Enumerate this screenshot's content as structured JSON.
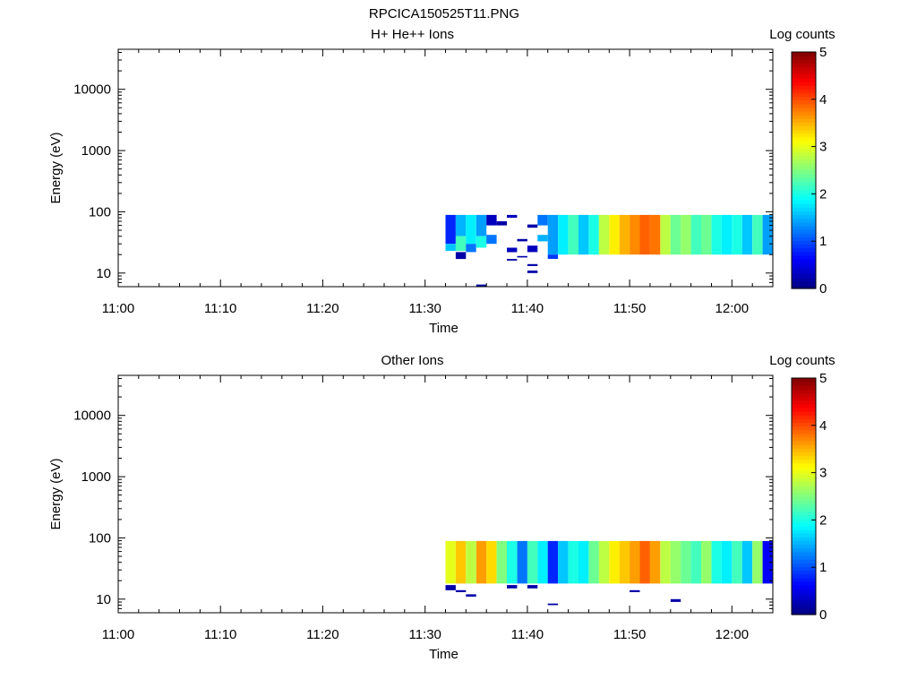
{
  "figure": {
    "title": "RPCICA150525T11.PNG"
  },
  "chart_data": [
    {
      "type": "heatmap",
      "title": "H+ He++ Ions",
      "xlabel": "Time",
      "ylabel": "Energy (eV)",
      "x_scale": "time",
      "y_scale": "log",
      "xlim": [
        "11:00",
        "12:03"
      ],
      "ylim": [
        6,
        45000
      ],
      "x_ticks": [
        "11:00",
        "11:10",
        "11:20",
        "11:30",
        "11:40",
        "11:50",
        "12:00"
      ],
      "y_ticks": [
        "10",
        "100",
        "1000",
        "10000"
      ],
      "colorbar": {
        "label": "Log counts",
        "range": [
          0,
          5
        ],
        "ticks": [
          "0",
          "1",
          "2",
          "3",
          "4",
          "5"
        ],
        "colormap": "jet"
      },
      "cells": [
        [
          "11:32",
          30,
          89,
          0.8
        ],
        [
          "11:32",
          23,
          30,
          1.6
        ],
        [
          "11:33",
          40,
          89,
          1.5
        ],
        [
          "11:33",
          23,
          40,
          2.2
        ],
        [
          "11:33",
          17,
          22,
          0.2
        ],
        [
          "11:34",
          30,
          89,
          1.8
        ],
        [
          "11:34",
          22,
          30,
          1.2
        ],
        [
          "11:35",
          40,
          89,
          1.4
        ],
        [
          "11:35",
          26,
          40,
          2.0
        ],
        [
          "11:35",
          6,
          6.5,
          0.2
        ],
        [
          "11:36",
          60,
          89,
          0.3
        ],
        [
          "11:36",
          30,
          42,
          1.2
        ],
        [
          "11:37",
          60,
          70,
          0.2
        ],
        [
          "11:38",
          80,
          89,
          0.3
        ],
        [
          "11:38",
          22,
          26,
          0.3
        ],
        [
          "11:38",
          16,
          17,
          0.2
        ],
        [
          "11:39",
          33,
          36,
          0.2
        ],
        [
          "11:39",
          18,
          19,
          0.2
        ],
        [
          "11:40",
          55,
          62,
          0.2
        ],
        [
          "11:40",
          22,
          28,
          0.3
        ],
        [
          "11:40",
          13,
          14,
          0.2
        ],
        [
          "11:40",
          10,
          11,
          0.2
        ],
        [
          "11:41",
          60,
          89,
          1.2
        ],
        [
          "11:41",
          33,
          42,
          1.5
        ],
        [
          "11:42",
          20,
          89,
          1.4
        ],
        [
          "11:42",
          17,
          20,
          0.9
        ],
        [
          "11:43",
          20,
          89,
          1.8
        ],
        [
          "11:44",
          20,
          89,
          2.2
        ],
        [
          "11:45",
          20,
          89,
          1.6
        ],
        [
          "11:46",
          20,
          89,
          2.0
        ],
        [
          "11:47",
          20,
          89,
          2.8
        ],
        [
          "11:48",
          20,
          89,
          3.2
        ],
        [
          "11:49",
          20,
          89,
          3.5
        ],
        [
          "11:50",
          20,
          89,
          3.7
        ],
        [
          "11:51",
          20,
          89,
          3.9
        ],
        [
          "11:52",
          20,
          89,
          3.8
        ],
        [
          "11:53",
          20,
          89,
          2.8
        ],
        [
          "11:54",
          20,
          89,
          2.4
        ],
        [
          "11:55",
          20,
          89,
          2.6
        ],
        [
          "11:56",
          20,
          89,
          2.2
        ],
        [
          "11:57",
          20,
          89,
          2.4
        ],
        [
          "11:58",
          20,
          89,
          2.0
        ],
        [
          "11:59",
          20,
          89,
          1.8
        ],
        [
          "12:00",
          20,
          89,
          2.0
        ],
        [
          "12:01",
          20,
          89,
          1.6
        ],
        [
          "12:02",
          20,
          89,
          2.2
        ],
        [
          "12:03",
          20,
          89,
          1.4
        ]
      ]
    },
    {
      "type": "heatmap",
      "title": "Other Ions",
      "xlabel": "Time",
      "ylabel": "Energy (eV)",
      "x_scale": "time",
      "y_scale": "log",
      "xlim": [
        "11:00",
        "12:03"
      ],
      "ylim": [
        6,
        45000
      ],
      "x_ticks": [
        "11:00",
        "11:10",
        "11:20",
        "11:30",
        "11:40",
        "11:50",
        "12:00"
      ],
      "y_ticks": [
        "10",
        "100",
        "1000",
        "10000"
      ],
      "colorbar": {
        "label": "Log counts",
        "range": [
          0,
          5
        ],
        "ticks": [
          "0",
          "1",
          "2",
          "3",
          "4",
          "5"
        ],
        "colormap": "jet"
      },
      "cells": [
        [
          "11:32",
          18,
          89,
          3.0
        ],
        [
          "11:32",
          14,
          17,
          0.2
        ],
        [
          "11:33",
          18,
          89,
          3.4
        ],
        [
          "11:33",
          13,
          14,
          0.2
        ],
        [
          "11:34",
          18,
          89,
          2.8
        ],
        [
          "11:34",
          11,
          12,
          0.2
        ],
        [
          "11:35",
          18,
          89,
          3.6
        ],
        [
          "11:36",
          18,
          89,
          3.3
        ],
        [
          "11:37",
          18,
          89,
          2.5
        ],
        [
          "11:38",
          18,
          89,
          2.0
        ],
        [
          "11:38",
          15,
          17,
          0.2
        ],
        [
          "11:39",
          18,
          89,
          1.2
        ],
        [
          "11:40",
          18,
          89,
          2.2
        ],
        [
          "11:40",
          15,
          17,
          0.2
        ],
        [
          "11:41",
          18,
          89,
          1.8
        ],
        [
          "11:42",
          18,
          89,
          0.8
        ],
        [
          "11:42",
          8,
          8.5,
          0.2
        ],
        [
          "11:43",
          18,
          89,
          1.6
        ],
        [
          "11:44",
          18,
          89,
          2.0
        ],
        [
          "11:45",
          18,
          89,
          1.8
        ],
        [
          "11:46",
          18,
          89,
          2.4
        ],
        [
          "11:47",
          18,
          89,
          2.8
        ],
        [
          "11:48",
          18,
          89,
          3.2
        ],
        [
          "11:49",
          18,
          89,
          3.4
        ],
        [
          "11:50",
          18,
          89,
          3.6
        ],
        [
          "11:50",
          13,
          14,
          0.2
        ],
        [
          "11:51",
          18,
          89,
          3.9
        ],
        [
          "11:52",
          18,
          89,
          3.6
        ],
        [
          "11:53",
          18,
          89,
          2.8
        ],
        [
          "11:54",
          18,
          89,
          2.6
        ],
        [
          "11:54",
          9,
          10,
          0.2
        ],
        [
          "11:55",
          18,
          89,
          2.4
        ],
        [
          "11:56",
          18,
          89,
          2.2
        ],
        [
          "11:57",
          18,
          89,
          2.6
        ],
        [
          "11:58",
          18,
          89,
          2.0
        ],
        [
          "11:59",
          18,
          89,
          1.8
        ],
        [
          "12:00",
          18,
          89,
          2.2
        ],
        [
          "12:01",
          18,
          89,
          1.6
        ],
        [
          "12:02",
          18,
          89,
          2.6
        ],
        [
          "12:03",
          18,
          89,
          0.6
        ]
      ]
    }
  ]
}
